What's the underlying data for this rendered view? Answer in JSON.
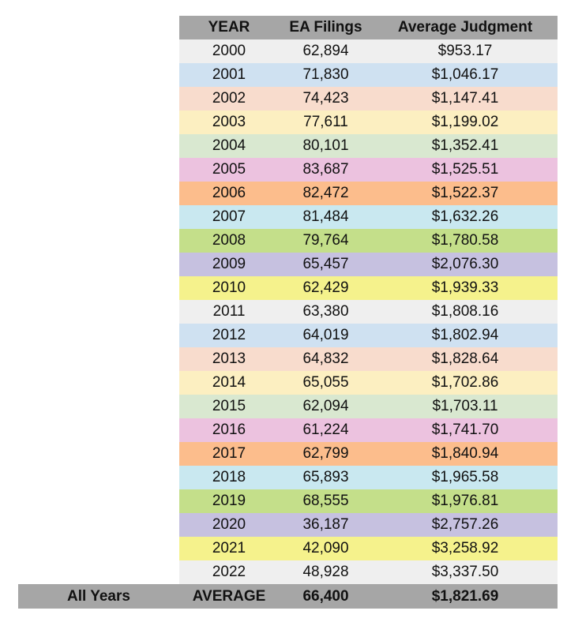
{
  "headers": {
    "year": "YEAR",
    "ea_filings": "EA Filings",
    "average_judgment": "Average Judgment"
  },
  "rows": [
    {
      "year": "2000",
      "ea_filings": "62,894",
      "average_judgment": "$953.17",
      "color": "#efefef"
    },
    {
      "year": "2001",
      "ea_filings": "71,830",
      "average_judgment": "$1,046.17",
      "color": "#cfe1f1"
    },
    {
      "year": "2002",
      "ea_filings": "74,423",
      "average_judgment": "$1,147.41",
      "color": "#f8dccd"
    },
    {
      "year": "2003",
      "ea_filings": "77,611",
      "average_judgment": "$1,199.02",
      "color": "#fcefc1"
    },
    {
      "year": "2004",
      "ea_filings": "80,101",
      "average_judgment": "$1,352.41",
      "color": "#d9e8d0"
    },
    {
      "year": "2005",
      "ea_filings": "83,687",
      "average_judgment": "$1,525.51",
      "color": "#ecc2df"
    },
    {
      "year": "2006",
      "ea_filings": "82,472",
      "average_judgment": "$1,522.37",
      "color": "#fcbd8c"
    },
    {
      "year": "2007",
      "ea_filings": "81,484",
      "average_judgment": "$1,632.26",
      "color": "#c9e8f0"
    },
    {
      "year": "2008",
      "ea_filings": "79,764",
      "average_judgment": "$1,780.58",
      "color": "#c4df8a"
    },
    {
      "year": "2009",
      "ea_filings": "65,457",
      "average_judgment": "$2,076.30",
      "color": "#c6c1e0"
    },
    {
      "year": "2010",
      "ea_filings": "62,429",
      "average_judgment": "$1,939.33",
      "color": "#f5f28c"
    },
    {
      "year": "2011",
      "ea_filings": "63,380",
      "average_judgment": "$1,808.16",
      "color": "#efefef"
    },
    {
      "year": "2012",
      "ea_filings": "64,019",
      "average_judgment": "$1,802.94",
      "color": "#cfe1f1"
    },
    {
      "year": "2013",
      "ea_filings": "64,832",
      "average_judgment": "$1,828.64",
      "color": "#f8dccd"
    },
    {
      "year": "2014",
      "ea_filings": "65,055",
      "average_judgment": "$1,702.86",
      "color": "#fcefc1"
    },
    {
      "year": "2015",
      "ea_filings": "62,094",
      "average_judgment": "$1,703.11",
      "color": "#d9e8d0"
    },
    {
      "year": "2016",
      "ea_filings": "61,224",
      "average_judgment": "$1,741.70",
      "color": "#ecc2df"
    },
    {
      "year": "2017",
      "ea_filings": "62,799",
      "average_judgment": "$1,840.94",
      "color": "#fcbd8c"
    },
    {
      "year": "2018",
      "ea_filings": "65,893",
      "average_judgment": "$1,965.58",
      "color": "#c9e8f0"
    },
    {
      "year": "2019",
      "ea_filings": "68,555",
      "average_judgment": "$1,976.81",
      "color": "#c4df8a"
    },
    {
      "year": "2020",
      "ea_filings": "36,187",
      "average_judgment": "$2,757.26",
      "color": "#c6c1e0"
    },
    {
      "year": "2021",
      "ea_filings": "42,090",
      "average_judgment": "$3,258.92",
      "color": "#f5f28c"
    },
    {
      "year": "2022",
      "ea_filings": "48,928",
      "average_judgment": "$3,337.50",
      "color": "#efefef"
    }
  ],
  "footer": {
    "label": "All Years",
    "year": "AVERAGE",
    "ea_filings": "66,400",
    "average_judgment": "$1,821.69"
  },
  "colors": {
    "header_bg": "#a6a6a6",
    "footer_bg": "#a6a6a6"
  }
}
